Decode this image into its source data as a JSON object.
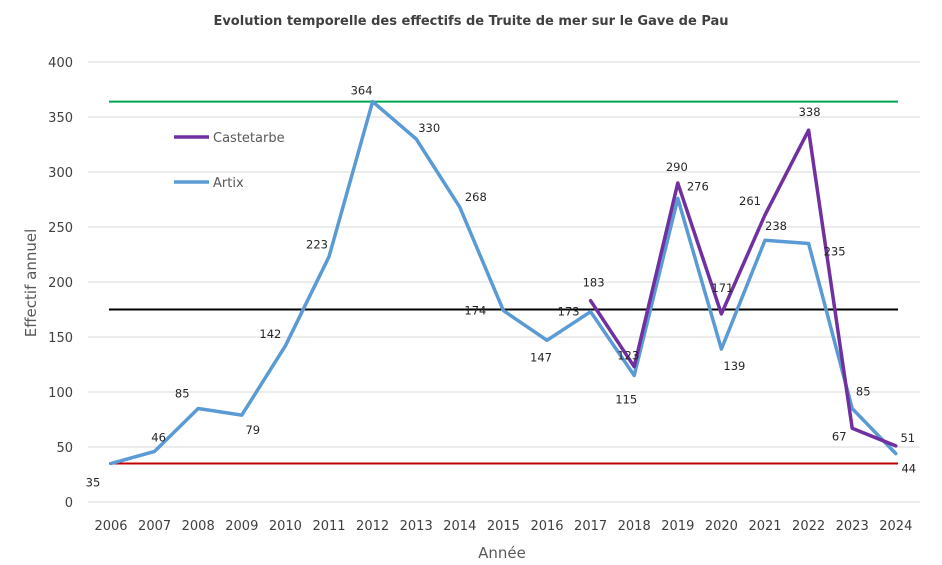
{
  "chart_data": {
    "type": "line",
    "title": "Evolution temporelle des effectifs de Truite de mer sur le Gave de Pau",
    "xlabel": "Année",
    "ylabel": "Effectif annuel",
    "ylim": [
      0,
      400
    ],
    "yticks": [
      0,
      50,
      100,
      150,
      200,
      250,
      300,
      350,
      400
    ],
    "grid": true,
    "legend_position": "top-left",
    "categories": [
      "2006",
      "2007",
      "2008",
      "2009",
      "2010",
      "2011",
      "2012",
      "2013",
      "2014",
      "2015",
      "2016",
      "2017",
      "2018",
      "2019",
      "2020",
      "2021",
      "2022",
      "2023",
      "2024"
    ],
    "series": [
      {
        "name": "Castetarbe",
        "color": "#7030a0",
        "values": [
          null,
          null,
          null,
          null,
          null,
          null,
          null,
          null,
          null,
          null,
          null,
          183,
          123,
          290,
          171,
          261,
          338,
          67,
          51
        ],
        "labels": [
          null,
          null,
          null,
          null,
          null,
          null,
          null,
          null,
          null,
          null,
          null,
          "183",
          "123",
          "290",
          "171",
          "261",
          "338",
          "67",
          "51"
        ]
      },
      {
        "name": "Artix",
        "color": "#5b9bd5",
        "values": [
          35,
          46,
          85,
          79,
          142,
          223,
          364,
          330,
          268,
          174,
          147,
          173,
          115,
          276,
          139,
          238,
          235,
          85,
          44
        ],
        "labels": [
          "35",
          "46",
          "85",
          "79",
          "142",
          "223",
          "364",
          "330",
          "268",
          "174",
          "147",
          "173",
          "115",
          "276",
          "139",
          "238",
          "235",
          "85",
          "44"
        ]
      }
    ],
    "reference_lines": [
      {
        "value": 364,
        "color": "#00a650"
      },
      {
        "value": 175,
        "color": "#000000"
      },
      {
        "value": 35,
        "color": "#c00000"
      }
    ]
  }
}
